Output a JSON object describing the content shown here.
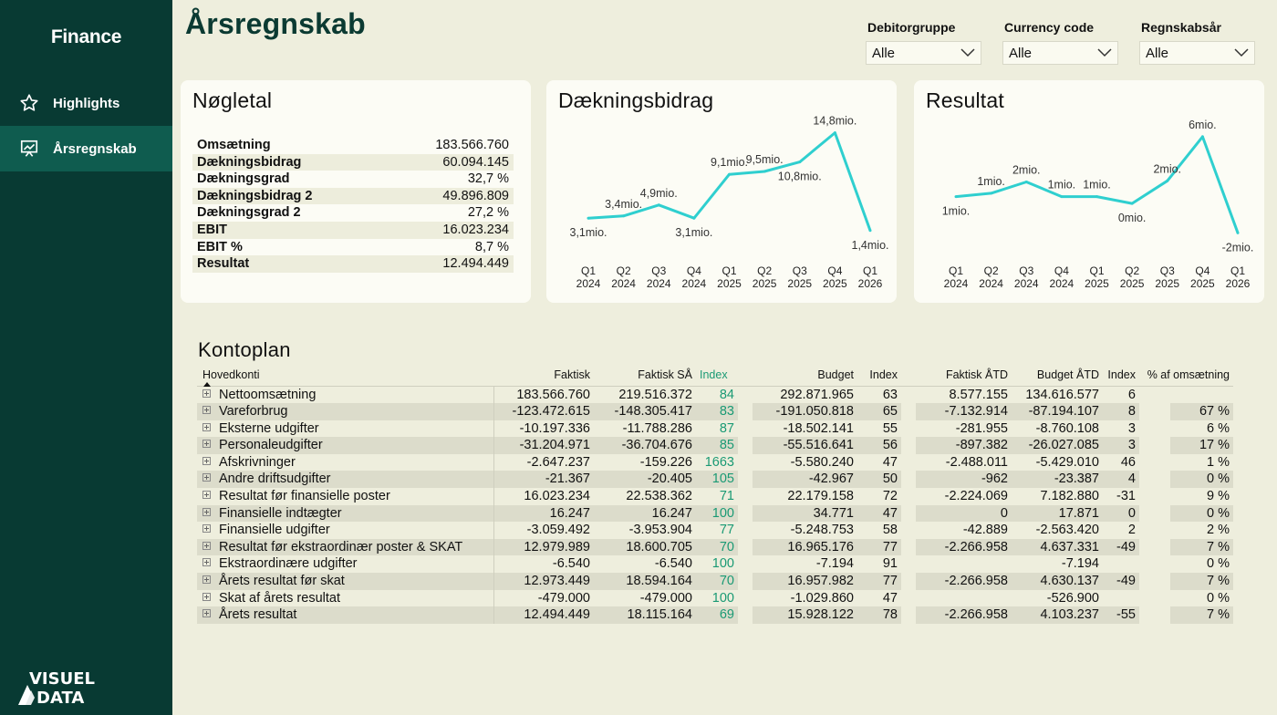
{
  "sidebar": {
    "brand": "Finance",
    "items": [
      {
        "label": "Highlights",
        "icon": "star-icon",
        "active": false
      },
      {
        "label": "Årsregnskab",
        "icon": "presentation-chart-icon",
        "active": true
      }
    ],
    "logo_line1": "VISUEL",
    "logo_line2": "DATA"
  },
  "header": {
    "title": "Årsregnskab",
    "filters": [
      {
        "label": "Debitorgruppe",
        "value": "Alle"
      },
      {
        "label": "Currency code",
        "value": "Alle"
      },
      {
        "label": "Regnskabsår",
        "value": "Alle"
      }
    ]
  },
  "kpi": {
    "title": "Nøgletal",
    "rows": [
      {
        "label": "Omsætning",
        "value": "183.566.760"
      },
      {
        "label": "Dækningsbidrag",
        "value": "60.094.145"
      },
      {
        "label": "Dækningsgrad",
        "value": "32,7 %"
      },
      {
        "label": "Dækningsbidrag 2",
        "value": "49.896.809"
      },
      {
        "label": "Dækningsgrad 2",
        "value": "27,2 %"
      },
      {
        "label": "EBIT",
        "value": "16.023.234"
      },
      {
        "label": "EBIT %",
        "value": "8,7 %"
      },
      {
        "label": "Resultat",
        "value": "12.494.449"
      }
    ]
  },
  "colors": {
    "line": "#2fcfcf",
    "sidebar": "#083a33",
    "sidebar_active": "#0f5c4f",
    "index_green": "#1a9a74"
  },
  "chart_data": [
    {
      "type": "line",
      "title": "Dækningsbidrag",
      "categories": [
        "Q1 2024",
        "Q2 2024",
        "Q3 2024",
        "Q4 2024",
        "Q1 2025",
        "Q2 2025",
        "Q3 2025",
        "Q4 2025",
        "Q1 2026"
      ],
      "values": [
        3.1,
        3.4,
        4.9,
        3.1,
        9.1,
        9.5,
        10.8,
        14.8,
        1.4
      ],
      "labels": [
        "3,1mio.",
        "3,4mio.",
        "4,9mio.",
        "3,1mio.",
        "9,1mio.",
        "9,5mio.",
        "10,8mio.",
        "14,8mio.",
        "1,4mio."
      ],
      "label_pos": [
        "below",
        "above",
        "above",
        "below",
        "above",
        "above",
        "below",
        "above",
        "below"
      ],
      "ylim": [
        0,
        15.5
      ],
      "grid": false
    },
    {
      "type": "line",
      "title": "Resultat",
      "categories": [
        "Q1 2024",
        "Q2 2024",
        "Q3 2024",
        "Q4 2024",
        "Q1 2025",
        "Q2 2025",
        "Q3 2025",
        "Q4 2025",
        "Q1 2026"
      ],
      "values": [
        0.9,
        1.2,
        2.2,
        0.9,
        0.9,
        0.3,
        2.3,
        6.2,
        -2.3
      ],
      "labels": [
        "1mio.",
        "1mio.",
        "2mio.",
        "1mio.",
        "1mio.",
        "0mio.",
        "2mio.",
        "6mio.",
        "-2mio."
      ],
      "label_pos": [
        "below",
        "above",
        "above",
        "above",
        "above",
        "below",
        "above",
        "above",
        "below"
      ],
      "ylim": [
        -3,
        7
      ],
      "grid": false
    }
  ],
  "kontoplan": {
    "title": "Kontoplan",
    "headers": {
      "name": "Hovedkonti",
      "faktisk": "Faktisk",
      "faktisk_sa": "Faktisk SÅ",
      "index1": "Index",
      "budget": "Budget",
      "index2": "Index",
      "faktisk_atd": "Faktisk ÅTD",
      "budget_atd": "Budget ÅTD",
      "index3": "Index",
      "pct": "% af omsætning"
    },
    "rows": [
      {
        "name": "Nettoomsætning",
        "faktisk": "183.566.760",
        "faktisk_sa": "219.516.372",
        "index1": "84",
        "budget": "292.871.965",
        "index2": "63",
        "faktisk_atd": "8.577.155",
        "budget_atd": "134.616.577",
        "index3": "6",
        "pct": ""
      },
      {
        "name": "Vareforbrug",
        "faktisk": "-123.472.615",
        "faktisk_sa": "-148.305.417",
        "index1": "83",
        "budget": "-191.050.818",
        "index2": "65",
        "faktisk_atd": "-7.132.914",
        "budget_atd": "-87.194.107",
        "index3": "8",
        "pct": "67 %"
      },
      {
        "name": "Eksterne udgifter",
        "faktisk": "-10.197.336",
        "faktisk_sa": "-11.788.286",
        "index1": "87",
        "budget": "-18.502.141",
        "index2": "55",
        "faktisk_atd": "-281.955",
        "budget_atd": "-8.760.108",
        "index3": "3",
        "pct": "6 %"
      },
      {
        "name": "Personaleudgifter",
        "faktisk": "-31.204.971",
        "faktisk_sa": "-36.704.676",
        "index1": "85",
        "budget": "-55.516.641",
        "index2": "56",
        "faktisk_atd": "-897.382",
        "budget_atd": "-26.027.085",
        "index3": "3",
        "pct": "17 %"
      },
      {
        "name": "Afskrivninger",
        "faktisk": "-2.647.237",
        "faktisk_sa": "-159.226",
        "index1": "1663",
        "budget": "-5.580.240",
        "index2": "47",
        "faktisk_atd": "-2.488.011",
        "budget_atd": "-5.429.010",
        "index3": "46",
        "pct": "1 %"
      },
      {
        "name": "Andre driftsudgifter",
        "faktisk": "-21.367",
        "faktisk_sa": "-20.405",
        "index1": "105",
        "budget": "-42.967",
        "index2": "50",
        "faktisk_atd": "-962",
        "budget_atd": "-23.387",
        "index3": "4",
        "pct": "0 %"
      },
      {
        "name": "Resultat før finansielle poster",
        "faktisk": "16.023.234",
        "faktisk_sa": "22.538.362",
        "index1": "71",
        "budget": "22.179.158",
        "index2": "72",
        "faktisk_atd": "-2.224.069",
        "budget_atd": "7.182.880",
        "index3": "-31",
        "pct": "9 %"
      },
      {
        "name": "Finansielle indtægter",
        "faktisk": "16.247",
        "faktisk_sa": "16.247",
        "index1": "100",
        "budget": "34.771",
        "index2": "47",
        "faktisk_atd": "0",
        "budget_atd": "17.871",
        "index3": "0",
        "pct": "0 %"
      },
      {
        "name": "Finansielle udgifter",
        "faktisk": "-3.059.492",
        "faktisk_sa": "-3.953.904",
        "index1": "77",
        "budget": "-5.248.753",
        "index2": "58",
        "faktisk_atd": "-42.889",
        "budget_atd": "-2.563.420",
        "index3": "2",
        "pct": "2 %"
      },
      {
        "name": "Resultat før ekstraordinær poster & SKAT",
        "faktisk": "12.979.989",
        "faktisk_sa": "18.600.705",
        "index1": "70",
        "budget": "16.965.176",
        "index2": "77",
        "faktisk_atd": "-2.266.958",
        "budget_atd": "4.637.331",
        "index3": "-49",
        "pct": "7 %"
      },
      {
        "name": "Ekstraordinære udgifter",
        "faktisk": "-6.540",
        "faktisk_sa": "-6.540",
        "index1": "100",
        "budget": "-7.194",
        "index2": "91",
        "faktisk_atd": "",
        "budget_atd": "-7.194",
        "index3": "",
        "pct": "0 %"
      },
      {
        "name": "Årets resultat før skat",
        "faktisk": "12.973.449",
        "faktisk_sa": "18.594.164",
        "index1": "70",
        "budget": "16.957.982",
        "index2": "77",
        "faktisk_atd": "-2.266.958",
        "budget_atd": "4.630.137",
        "index3": "-49",
        "pct": "7 %"
      },
      {
        "name": "Skat af årets resultat",
        "faktisk": "-479.000",
        "faktisk_sa": "-479.000",
        "index1": "100",
        "budget": "-1.029.860",
        "index2": "47",
        "faktisk_atd": "",
        "budget_atd": "-526.900",
        "index3": "",
        "pct": "0 %"
      },
      {
        "name": "Årets resultat",
        "faktisk": "12.494.449",
        "faktisk_sa": "18.115.164",
        "index1": "69",
        "budget": "15.928.122",
        "index2": "78",
        "faktisk_atd": "-2.266.958",
        "budget_atd": "4.103.237",
        "index3": "-55",
        "pct": "7 %"
      }
    ]
  }
}
